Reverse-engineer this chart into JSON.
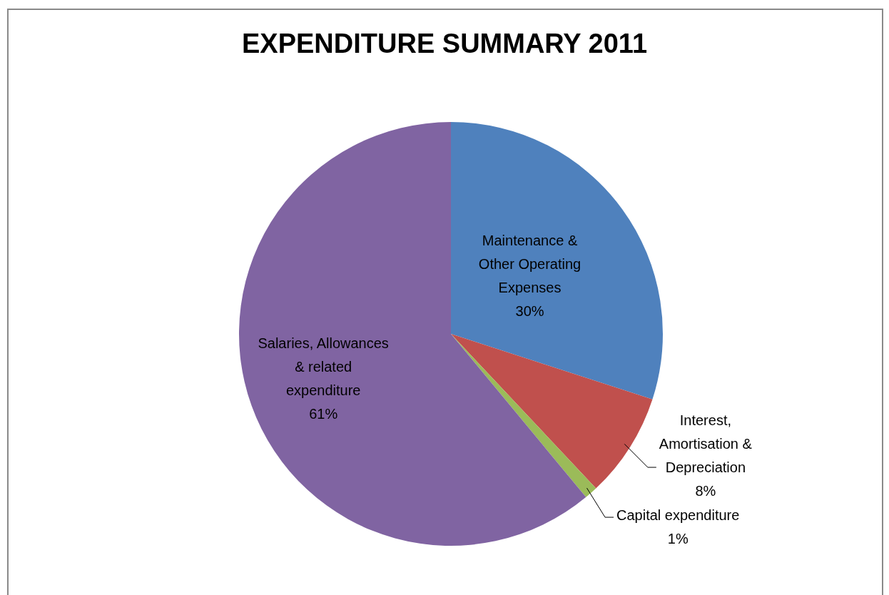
{
  "chart_data": {
    "type": "pie",
    "title": "EXPENDITURE SUMMARY 2011",
    "categories": [
      "Maintenance &\nOther Operating\nExpenses",
      "Interest,\nAmortisation &\nDepreciation",
      "Capital expenditure",
      "Salaries, Allowances\n& related\nexpenditure"
    ],
    "values": [
      30,
      8,
      1,
      61
    ],
    "colors": [
      "#4f81bd",
      "#c0504d",
      "#9bbb59",
      "#8064a2"
    ],
    "value_labels": [
      "30%",
      "8%",
      "1%",
      "61%"
    ],
    "legend": false
  }
}
